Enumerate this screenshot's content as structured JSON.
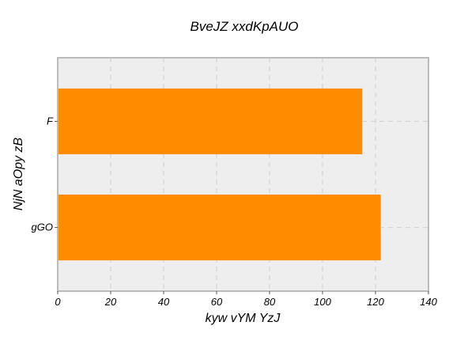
{
  "chart_data": {
    "type": "bar",
    "orientation": "horizontal",
    "title": "BveJZ xxdKpAUO",
    "xlabel": "kyw vYM YzJ",
    "ylabel": "NjN aOpy zB",
    "categories": [
      "F",
      "gGO"
    ],
    "values": [
      115,
      122
    ],
    "xlim": [
      0,
      140
    ],
    "xticks": [
      0,
      20,
      40,
      60,
      80,
      100,
      120,
      140
    ],
    "grid": true,
    "colors": {
      "bar": "#ff8c00",
      "plot_background": "#eeeeee",
      "frame": "#bbbbbb",
      "grid": "#d4d4d4"
    }
  }
}
